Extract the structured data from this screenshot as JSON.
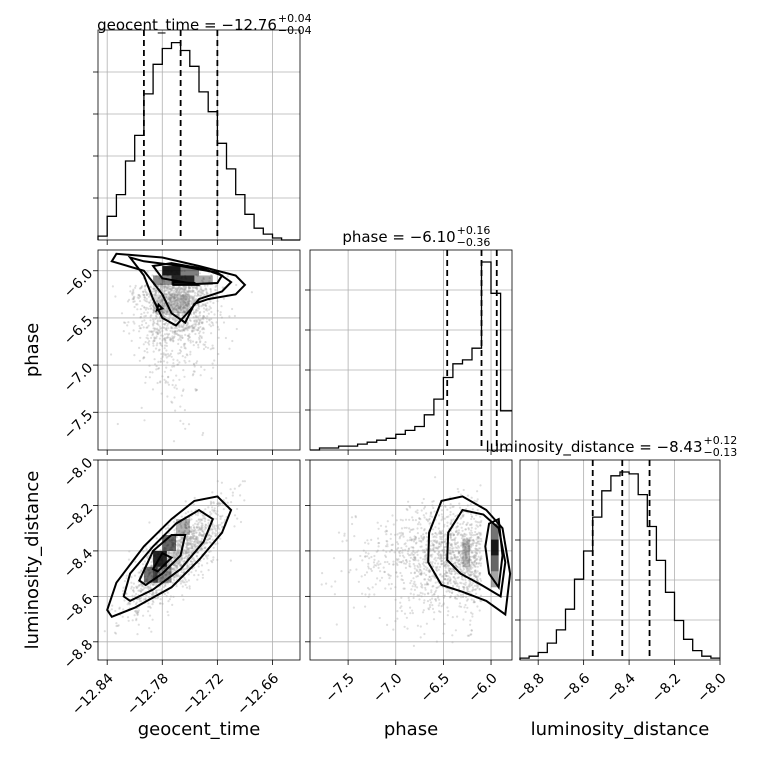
{
  "chart_data": {
    "type": "corner",
    "parameters": [
      "geocent_time",
      "phase",
      "luminosity_distance"
    ],
    "axis_labels": {
      "geocent_time": "geocent_time",
      "phase": "phase",
      "luminosity_distance": "luminosity_distance"
    },
    "titles": [
      {
        "param": "geocent_time",
        "main": "geocent_time = −12.76",
        "plus": "+0.04",
        "minus": "−0.04"
      },
      {
        "param": "phase",
        "main": "phase = −6.10",
        "plus": "+0.16",
        "minus": "−0.36"
      },
      {
        "param": "luminosity_distance",
        "main": "luminosity_distance = −8.43",
        "plus": "+0.12",
        "minus": "−0.13"
      }
    ],
    "ranges": {
      "geocent_time": [
        -12.85,
        -12.63
      ],
      "phase": [
        -7.9,
        -5.78
      ],
      "luminosity_distance": [
        -8.88,
        -8.0
      ]
    },
    "ticks": {
      "geocent_time": [
        {
          "v": -12.84,
          "label": "−12.84"
        },
        {
          "v": -12.78,
          "label": "−12.78"
        },
        {
          "v": -12.72,
          "label": "−12.72"
        },
        {
          "v": -12.66,
          "label": "−12.66"
        }
      ],
      "phase_y": [
        {
          "v": -6.0,
          "label": "−6.0"
        },
        {
          "v": -6.5,
          "label": "−6.5"
        },
        {
          "v": -7.0,
          "label": "−7.0"
        },
        {
          "v": -7.5,
          "label": "−7.5"
        }
      ],
      "phase_x": [
        {
          "v": -7.5,
          "label": "−7.5"
        },
        {
          "v": -7.0,
          "label": "−7.0"
        },
        {
          "v": -6.5,
          "label": "−6.5"
        },
        {
          "v": -6.0,
          "label": "−6.0"
        }
      ],
      "luminosity_distance_y": [
        {
          "v": -8.0,
          "label": "−8.0"
        },
        {
          "v": -8.2,
          "label": "−8.2"
        },
        {
          "v": -8.4,
          "label": "−8.4"
        },
        {
          "v": -8.6,
          "label": "−8.6"
        },
        {
          "v": -8.8,
          "label": "−8.8"
        }
      ],
      "luminosity_distance_x": [
        {
          "v": -8.8,
          "label": "−8.8"
        },
        {
          "v": -8.6,
          "label": "−8.6"
        },
        {
          "v": -8.4,
          "label": "−8.4"
        },
        {
          "v": -8.2,
          "label": "−8.2"
        },
        {
          "v": -8.0,
          "label": "−8.0"
        }
      ]
    },
    "quantiles": {
      "geocent_time": [
        -12.8,
        -12.76,
        -12.72
      ],
      "phase": [
        -6.46,
        -6.1,
        -5.94
      ],
      "luminosity_distance": [
        -8.56,
        -8.43,
        -8.31
      ]
    },
    "histograms": {
      "geocent_time": {
        "edges": [
          -12.85,
          -12.84,
          -12.83,
          -12.82,
          -12.81,
          -12.8,
          -12.79,
          -12.78,
          -12.77,
          -12.76,
          -12.75,
          -12.74,
          -12.73,
          -12.72,
          -12.71,
          -12.7,
          -12.69,
          -12.68,
          -12.67,
          -12.66,
          -12.65,
          -12.63
        ],
        "counts": [
          0.02,
          0.12,
          0.23,
          0.4,
          0.53,
          0.74,
          0.89,
          0.97,
          1.0,
          0.96,
          0.88,
          0.75,
          0.65,
          0.49,
          0.36,
          0.23,
          0.13,
          0.06,
          0.03,
          0.01,
          0.0
        ]
      },
      "phase": {
        "edges": [
          -7.9,
          -7.8,
          -7.7,
          -7.6,
          -7.5,
          -7.4,
          -7.3,
          -7.2,
          -7.1,
          -7.0,
          -6.9,
          -6.8,
          -6.7,
          -6.6,
          -6.5,
          -6.4,
          -6.3,
          -6.2,
          -6.1,
          -6.0,
          -5.9,
          -5.78
        ],
        "counts": [
          0.0,
          0.01,
          0.01,
          0.02,
          0.02,
          0.03,
          0.04,
          0.05,
          0.06,
          0.08,
          0.1,
          0.12,
          0.18,
          0.26,
          0.37,
          0.44,
          0.46,
          0.52,
          0.96,
          0.8,
          0.2
        ]
      },
      "luminosity_distance": {
        "edges": [
          -8.88,
          -8.84,
          -8.8,
          -8.76,
          -8.72,
          -8.68,
          -8.64,
          -8.6,
          -8.56,
          -8.52,
          -8.48,
          -8.44,
          -8.4,
          -8.36,
          -8.32,
          -8.28,
          -8.24,
          -8.2,
          -8.16,
          -8.12,
          -8.08,
          -8.04,
          -8.0
        ],
        "counts": [
          0.01,
          0.02,
          0.04,
          0.09,
          0.16,
          0.27,
          0.43,
          0.58,
          0.76,
          0.9,
          0.98,
          1.0,
          0.99,
          0.88,
          0.71,
          0.53,
          0.36,
          0.21,
          0.11,
          0.05,
          0.02,
          0.01
        ]
      }
    },
    "contour_levels": [
      0.118,
      0.393,
      0.675,
      0.865
    ],
    "scatter_color": "#a0a0a0",
    "density_color": "#000000",
    "line_color": "#000000",
    "grid": true
  }
}
